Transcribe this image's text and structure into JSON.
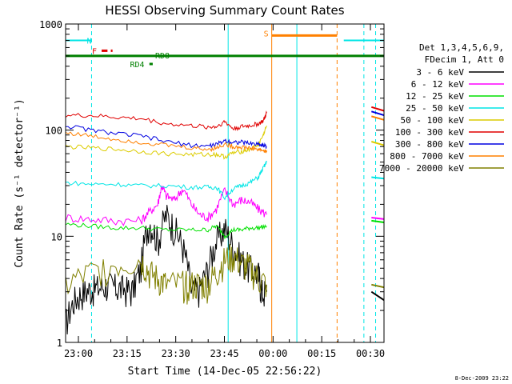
{
  "chart_data": {
    "type": "line",
    "title": "HESSI Observing Summary Count Rates",
    "xlabel": "Start Time (14-Dec-05 22:56:22)",
    "ylabel": "Count Rate (s⁻¹ detector⁻¹)",
    "yscale": "log",
    "ylim": [
      1,
      1000
    ],
    "xlim_minutes": [
      0,
      38
    ],
    "x_ticks": [
      "23:00",
      "23:15",
      "23:30",
      "23:45",
      "00:00",
      "00:15",
      "00:30"
    ],
    "y_ticks": [
      "1",
      "10",
      "100",
      "1000"
    ],
    "timestamp": "8-Dec-2009 23:22",
    "legend": {
      "placement": "right",
      "header": [
        "Det 1,3,4,5,6,9,",
        "FDecim 1, Att 0"
      ],
      "entries": [
        {
          "label": "3 - 6 keV",
          "color": "#000000"
        },
        {
          "label": "6 - 12 keV",
          "color": "#ff00ff"
        },
        {
          "label": "12 - 25 keV",
          "color": "#00e000"
        },
        {
          "label": "25 - 50 keV",
          "color": "#00e5e5"
        },
        {
          "label": "50 - 100 keV",
          "color": "#dccc00"
        },
        {
          "label": "100 - 300 keV",
          "color": "#e00000"
        },
        {
          "label": "300 - 800 keV",
          "color": "#0000e0"
        },
        {
          "label": "800 - 7000 keV",
          "color": "#ff8000"
        },
        {
          "label": "7000 - 20000 keV",
          "color": "#808000"
        }
      ]
    },
    "flags": [
      {
        "label": "N",
        "color": "#00e5e5",
        "y": 700
      },
      {
        "label": "F",
        "color": "#e00000",
        "y": 560
      },
      {
        "label": "RD8",
        "color": "#008000",
        "y": 500
      },
      {
        "label": "RD4",
        "color": "#008000",
        "y": 420
      },
      {
        "label": "S",
        "color": "#ff8000",
        "y": 780
      }
    ],
    "series": [
      {
        "name": "3 - 6 keV",
        "color": "#000000",
        "x": [
          0,
          1,
          2,
          3,
          4,
          5,
          6,
          7,
          8,
          9,
          10,
          11,
          12,
          13,
          14,
          15,
          16,
          17,
          18,
          19,
          20,
          21,
          22,
          23,
          23.4,
          24
        ],
        "y": [
          1.5,
          2.5,
          3,
          3.2,
          3.3,
          3.5,
          3.3,
          3.2,
          3.1,
          5,
          14,
          9,
          16,
          12,
          8,
          3,
          3.2,
          5,
          9,
          12,
          8,
          6,
          5,
          4.5,
          3,
          3
        ]
      },
      {
        "name": "6 - 12 keV",
        "color": "#ff00ff",
        "x": [
          0,
          3,
          6,
          9,
          10,
          11,
          11.5,
          12,
          13,
          14,
          15,
          16,
          17,
          18,
          19,
          20,
          21,
          22,
          23,
          24
        ],
        "y": [
          15,
          14.5,
          14,
          14,
          17,
          20,
          30,
          24,
          22,
          28,
          20,
          16,
          15,
          18,
          27,
          20,
          22,
          21,
          18,
          16
        ]
      },
      {
        "name": "12 - 25 keV",
        "color": "#00e000",
        "x": [
          0,
          3,
          6,
          9,
          12,
          15,
          17,
          18,
          19,
          20,
          21,
          22,
          23,
          24
        ],
        "y": [
          13,
          12.5,
          12,
          12,
          11.5,
          11.5,
          11.5,
          12.5,
          10,
          11.5,
          11.5,
          12,
          12,
          12.5
        ]
      },
      {
        "name": "25 - 50 keV",
        "color": "#00e5e5",
        "x": [
          0,
          3,
          6,
          9,
          12,
          15,
          17,
          18,
          19,
          20,
          21,
          22,
          23,
          23.6,
          24
        ],
        "y": [
          32,
          31,
          31,
          30,
          30,
          29,
          29,
          29,
          23,
          28,
          30,
          32,
          36,
          44,
          50
        ]
      },
      {
        "name": "50 - 100 keV",
        "color": "#dccc00",
        "x": [
          0,
          3,
          6,
          9,
          12,
          15,
          17,
          18,
          19,
          20,
          21,
          22,
          23,
          23.6,
          24
        ],
        "y": [
          70,
          68,
          66,
          63,
          60,
          59,
          59,
          59,
          56,
          61,
          63,
          66,
          72,
          90,
          110
        ]
      },
      {
        "name": "100 - 300 keV",
        "color": "#e00000",
        "x": [
          0,
          3,
          6,
          9,
          12,
          15,
          17,
          18,
          19,
          20,
          21,
          22,
          23,
          23.6,
          24
        ],
        "y": [
          138,
          137,
          132,
          128,
          115,
          110,
          107,
          108,
          120,
          103,
          108,
          110,
          115,
          122,
          145
        ]
      },
      {
        "name": "300 - 800 keV",
        "color": "#0000e0",
        "x": [
          0,
          3,
          6,
          9,
          12,
          15,
          17,
          18,
          19,
          20,
          21,
          22,
          23,
          23.6,
          24
        ],
        "y": [
          110,
          100,
          93,
          88,
          78,
          72,
          71,
          73,
          80,
          77,
          77,
          75,
          74,
          72,
          70
        ]
      },
      {
        "name": "800 - 7000 keV",
        "color": "#ff8000",
        "x": [
          0,
          3,
          6,
          9,
          12,
          15,
          17,
          18,
          19,
          20,
          21,
          22,
          23,
          23.6,
          24
        ],
        "y": [
          95,
          88,
          82,
          77,
          72,
          68,
          66,
          68,
          74,
          70,
          69,
          68,
          66,
          64,
          62
        ]
      },
      {
        "name": "7000 - 20000 keV",
        "color": "#808000",
        "x": [
          0,
          3,
          6,
          9,
          10,
          11,
          12,
          14,
          15,
          16,
          17,
          18,
          19,
          20,
          21,
          22,
          23,
          24
        ],
        "y": [
          3.5,
          4.5,
          5.5,
          6,
          4.5,
          4,
          3.5,
          3.5,
          3.5,
          3.5,
          3.5,
          4.5,
          6,
          6.5,
          5.5,
          5,
          4,
          3.5
        ]
      }
    ],
    "segment2": [
      {
        "name": "3 - 6 keV",
        "x": [
          36.5,
          38
        ],
        "y": [
          3,
          2.5
        ]
      },
      {
        "name": "6 - 12 keV",
        "x": [
          36.5,
          38
        ],
        "y": [
          15,
          14.5
        ]
      },
      {
        "name": "12 - 25 keV",
        "x": [
          36.5,
          38
        ],
        "y": [
          14,
          13.5
        ]
      },
      {
        "name": "25 - 50 keV",
        "x": [
          36.5,
          38
        ],
        "y": [
          36,
          35
        ]
      },
      {
        "name": "50 - 100 keV",
        "x": [
          36.5,
          38
        ],
        "y": [
          78,
          72
        ]
      },
      {
        "name": "100 - 300 keV",
        "x": [
          36.5,
          38
        ],
        "y": [
          165,
          152
        ]
      },
      {
        "name": "300 - 800 keV",
        "x": [
          36.5,
          38
        ],
        "y": [
          150,
          138
        ]
      },
      {
        "name": "800 - 7000 keV",
        "x": [
          36.5,
          38
        ],
        "y": [
          135,
          125
        ]
      },
      {
        "name": "7000 - 20000 keV",
        "x": [
          36.5,
          38
        ],
        "y": [
          3.5,
          3.3
        ]
      }
    ]
  }
}
